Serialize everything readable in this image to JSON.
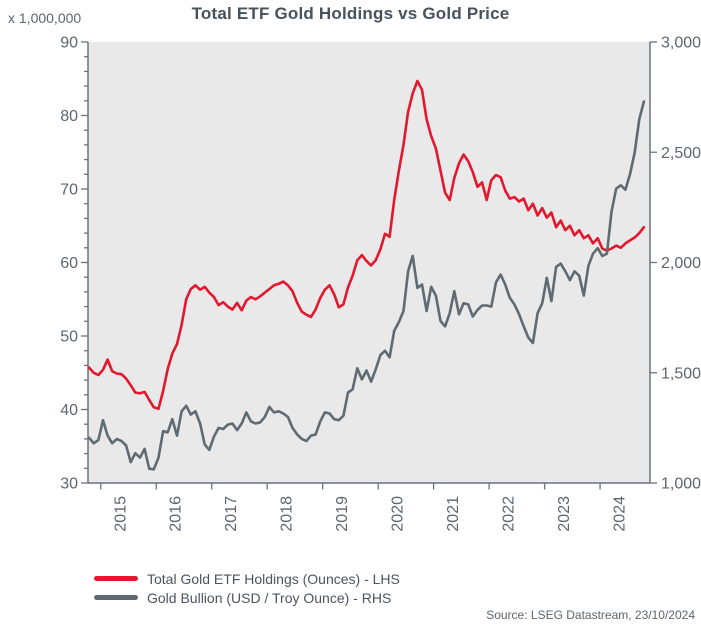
{
  "chart": {
    "title": "Total ETF Gold Holdings vs Gold Price",
    "axis_multiplier_label": "x 1,000,000",
    "source_note": "Source: LSEG Datastream, 23/10/2024",
    "colors": {
      "etf_red": "#e2182e",
      "bullion_grey": "#5f6a72",
      "plot_background": "#e9e9e9",
      "axis_line": "#6a737d",
      "tick_text": "#5c6670",
      "title_text": "#46525c"
    }
  },
  "chart_data": {
    "type": "line",
    "title": "Total ETF Gold Holdings vs Gold Price",
    "x_description": "Monthly samples from Oct 2014 to Oct 2024 (decimal years)",
    "x_start_year": 2014.79,
    "x_step_years": 0.0833333,
    "point_count": 121,
    "x_domain": [
      2014.77,
      2024.9
    ],
    "grid": false,
    "legend_position": "bottom-left",
    "x_axis": {
      "tick_years": [
        2015,
        2016,
        2017,
        2018,
        2019,
        2020,
        2021,
        2022,
        2023,
        2024
      ],
      "tick_labels": [
        "2015",
        "2016",
        "2017",
        "2018",
        "2019",
        "2020",
        "2021",
        "2022",
        "2023",
        "2024"
      ]
    },
    "left_axis": {
      "unit": "x 1,000,000",
      "min": 30,
      "max": 90,
      "major_step": 10,
      "minor_step": 2,
      "tick_values": [
        30,
        40,
        50,
        60,
        70,
        80,
        90
      ],
      "tick_labels": [
        "30",
        "40",
        "50",
        "60",
        "70",
        "80",
        "90"
      ]
    },
    "right_axis": {
      "unit": "USD / Troy Ounce",
      "min": 1000,
      "max": 3000,
      "major_step": 500,
      "tick_values": [
        1000,
        1500,
        2000,
        2500,
        3000
      ],
      "tick_labels": [
        "1,000",
        "1,500",
        "2,000",
        "2,500",
        "3,000"
      ]
    },
    "series": [
      {
        "name": "Total Gold ETF Holdings (Ounces) - LHS",
        "axis": "left",
        "color": "#e2182e",
        "values": [
          45.7,
          45.0,
          44.7,
          45.4,
          46.8,
          45.2,
          44.9,
          44.8,
          44.2,
          43.3,
          42.3,
          42.2,
          42.4,
          41.3,
          40.3,
          40.1,
          42.5,
          45.5,
          47.6,
          48.9,
          51.5,
          55.0,
          56.4,
          56.9,
          56.3,
          56.7,
          55.9,
          55.3,
          54.2,
          54.6,
          54.0,
          53.6,
          54.5,
          53.5,
          54.8,
          55.3,
          55.0,
          55.4,
          55.9,
          56.4,
          56.9,
          57.1,
          57.4,
          56.9,
          56.1,
          54.5,
          53.3,
          52.9,
          52.6,
          53.6,
          55.2,
          56.3,
          56.9,
          55.7,
          53.9,
          54.3,
          56.6,
          58.2,
          60.3,
          61.0,
          60.2,
          59.6,
          60.3,
          61.8,
          63.9,
          63.5,
          68.5,
          72.5,
          76.0,
          80.5,
          83.0,
          84.7,
          83.5,
          79.5,
          77.2,
          75.5,
          72.5,
          69.5,
          68.5,
          71.5,
          73.5,
          74.7,
          73.8,
          72.3,
          70.3,
          70.9,
          68.5,
          71.2,
          71.9,
          71.6,
          69.8,
          68.7,
          68.9,
          68.3,
          68.7,
          67.1,
          68.0,
          66.4,
          67.4,
          66.1,
          66.8,
          64.8,
          65.7,
          64.4,
          65.0,
          63.7,
          64.4,
          63.3,
          63.7,
          62.6,
          63.3,
          61.9,
          61.6,
          61.9,
          62.3,
          62.0,
          62.6,
          63.0,
          63.4,
          64.0,
          64.8
        ]
      },
      {
        "name": "Gold Bullion (USD / Troy Ounce) - RHS",
        "axis": "right",
        "color": "#5f6a72",
        "values": [
          1205,
          1180,
          1195,
          1285,
          1215,
          1180,
          1200,
          1190,
          1170,
          1095,
          1135,
          1115,
          1155,
          1065,
          1062,
          1115,
          1235,
          1230,
          1290,
          1215,
          1325,
          1350,
          1310,
          1325,
          1270,
          1175,
          1150,
          1210,
          1250,
          1245,
          1265,
          1270,
          1240,
          1270,
          1320,
          1280,
          1270,
          1275,
          1300,
          1345,
          1320,
          1325,
          1315,
          1300,
          1250,
          1220,
          1200,
          1190,
          1215,
          1220,
          1280,
          1320,
          1315,
          1290,
          1285,
          1305,
          1410,
          1425,
          1520,
          1470,
          1510,
          1460,
          1515,
          1580,
          1600,
          1570,
          1690,
          1730,
          1780,
          1960,
          2030,
          1885,
          1900,
          1780,
          1890,
          1850,
          1735,
          1710,
          1770,
          1870,
          1765,
          1815,
          1810,
          1755,
          1785,
          1805,
          1805,
          1800,
          1910,
          1945,
          1900,
          1840,
          1810,
          1765,
          1710,
          1660,
          1635,
          1770,
          1815,
          1930,
          1825,
          1980,
          1995,
          1960,
          1920,
          1960,
          1940,
          1850,
          1985,
          2040,
          2065,
          2030,
          2040,
          2230,
          2335,
          2350,
          2330,
          2400,
          2500,
          2650,
          2730
        ]
      }
    ]
  }
}
